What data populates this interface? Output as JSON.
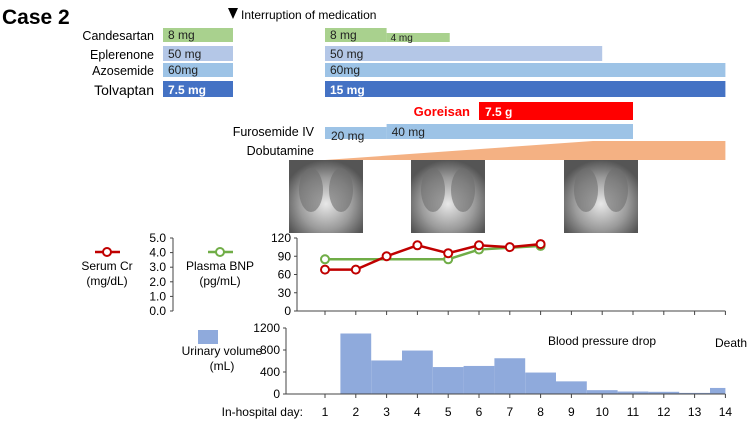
{
  "title": "Case 2",
  "interruption_label": "Interruption of medication",
  "medications": [
    {
      "name": "Candesartan",
      "color": "#a9d18e",
      "pre": "8 mg",
      "segments": [
        {
          "label": "8 mg",
          "start": 1,
          "end": 3,
          "level": "full"
        },
        {
          "label": "4 mg",
          "start": 3,
          "end": 5.05,
          "level": "half"
        }
      ]
    },
    {
      "name": "Eplerenone",
      "color": "#b4c7e7",
      "pre": "50 mg",
      "segments": [
        {
          "label": "50 mg",
          "start": 1,
          "end": 10,
          "level": "full"
        }
      ]
    },
    {
      "name": "Azosemide",
      "color": "#9dc3e6",
      "pre": "60mg",
      "segments": [
        {
          "label": "60mg",
          "start": 1,
          "end": 14,
          "level": "full"
        }
      ]
    },
    {
      "name": "Tolvaptan",
      "color": "#4472c4",
      "pre": "7.5 mg",
      "segments": [
        {
          "label": "15 mg",
          "start": 1,
          "end": 14,
          "level": "full"
        }
      ]
    }
  ],
  "goreisan": {
    "name": "Goreisan",
    "label": "7.5 g",
    "start": 6,
    "end": 11,
    "color": "#ff0000"
  },
  "furosemide": {
    "name": "Furosemide IV",
    "color": "#9dc3e6",
    "segments": [
      {
        "label": "20 mg",
        "start": 1,
        "end": 3
      },
      {
        "label": "40 mg",
        "start": 3,
        "end": 11
      }
    ]
  },
  "dobutamine": {
    "name": "Dobutamine",
    "color": "#f4b183",
    "ramp_start": 1,
    "ramp_end": 9.7,
    "end": 14
  },
  "chart_data": [
    {
      "type": "line",
      "x": [
        1,
        2,
        3,
        4,
        5,
        6,
        7,
        8
      ],
      "ylim": [
        0,
        120
      ],
      "yticks": [
        "0",
        "30",
        "60",
        "90",
        "120"
      ],
      "secondary_axis": {
        "label_lines": [
          "Plasma BNP",
          "(pg/mL)"
        ],
        "ticks": [
          "0",
          "30",
          "60",
          "90",
          "120"
        ]
      },
      "cr_axis": {
        "label_lines": [
          "Serum Cr",
          "(mg/dL)"
        ],
        "ticks": [
          "0.0",
          "1.0",
          "2.0",
          "3.0",
          "4.0",
          "5.0"
        ],
        "ylim": [
          0,
          5
        ]
      },
      "series": [
        {
          "name": "Serum Cr",
          "color": "#c00000",
          "x": [
            1,
            2,
            3,
            4,
            5,
            6,
            7,
            8
          ],
          "values": [
            68,
            68,
            90,
            108,
            95,
            108,
            105,
            110
          ]
        },
        {
          "name": "Plasma BNP",
          "color": "#70ad47",
          "x": [
            1,
            5,
            6,
            8
          ],
          "values": [
            85,
            85,
            101,
            107
          ]
        }
      ]
    },
    {
      "type": "bar",
      "title": "",
      "ylabel_lines": [
        "Urinary volume",
        "(mL)"
      ],
      "ylim": [
        0,
        1200
      ],
      "yticks": [
        "0",
        "400",
        "800",
        "1200"
      ],
      "color": "#8faadc",
      "bins": [
        {
          "from": 1.5,
          "to": 2.5,
          "value": 1100
        },
        {
          "from": 2.5,
          "to": 3.5,
          "value": 610
        },
        {
          "from": 3.5,
          "to": 4.5,
          "value": 790
        },
        {
          "from": 4.5,
          "to": 5.5,
          "value": 490
        },
        {
          "from": 5.5,
          "to": 6.5,
          "value": 510
        },
        {
          "from": 6.5,
          "to": 7.5,
          "value": 650
        },
        {
          "from": 7.5,
          "to": 8.5,
          "value": 390
        },
        {
          "from": 8.5,
          "to": 9.5,
          "value": 230
        },
        {
          "from": 9.5,
          "to": 10.5,
          "value": 70
        },
        {
          "from": 10.5,
          "to": 11.5,
          "value": 45
        },
        {
          "from": 11.5,
          "to": 12.5,
          "value": 40
        },
        {
          "from": 12.5,
          "to": 13.5,
          "value": 20
        },
        {
          "from": 13.5,
          "to": 14,
          "value": 110
        }
      ],
      "annotations": [
        "Blood pressure drop",
        "Death"
      ]
    }
  ],
  "xaxis": {
    "label": "In-hospital day:",
    "ticks": [
      "1",
      "2",
      "3",
      "4",
      "5",
      "6",
      "7",
      "8",
      "9",
      "10",
      "11",
      "12",
      "13",
      "14"
    ]
  }
}
